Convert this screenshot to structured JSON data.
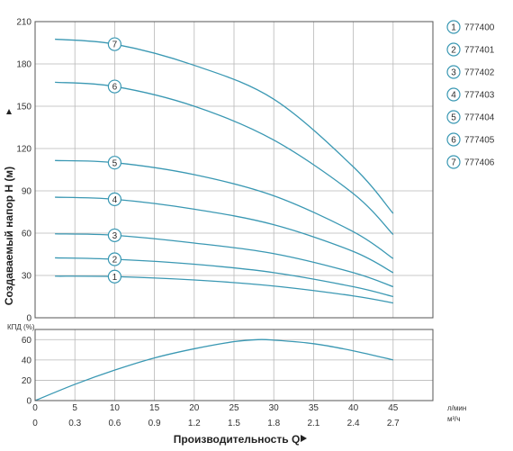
{
  "colors": {
    "curve": "#3a98b3",
    "grid": "#b8b8b8",
    "frame": "#555555",
    "marker_fill": "#ffffff",
    "marker_stroke": "#3a98b3",
    "arrow": "#222222"
  },
  "chart_data": [
    {
      "type": "line",
      "panel": "head",
      "ylabel": "Создаваемый напор H (м)",
      "ylim": [
        0,
        210
      ],
      "yticks": [
        "0",
        "30",
        "60",
        "90",
        "120",
        "150",
        "180",
        "210"
      ],
      "xlim": [
        0,
        50
      ],
      "grid": true,
      "series": [
        {
          "name": "1",
          "x": [
            2.5,
            10,
            20,
            30,
            40,
            45
          ],
          "values": [
            29.5,
            29.2,
            26.8,
            22.5,
            15.5,
            10.5
          ]
        },
        {
          "name": "2",
          "x": [
            2.5,
            10,
            20,
            30,
            40,
            45
          ],
          "values": [
            42.5,
            41.5,
            38,
            32,
            22,
            15
          ]
        },
        {
          "name": "3",
          "x": [
            2.5,
            10,
            20,
            30,
            40,
            45
          ],
          "values": [
            59.5,
            58.5,
            53,
            45.5,
            32,
            22
          ]
        },
        {
          "name": "4",
          "x": [
            2.5,
            10,
            20,
            30,
            40,
            45
          ],
          "values": [
            85.5,
            84,
            77,
            66,
            47,
            32
          ]
        },
        {
          "name": "5",
          "x": [
            2.5,
            10,
            20,
            30,
            40,
            45
          ],
          "values": [
            111.5,
            110,
            101.5,
            86.5,
            61,
            42
          ]
        },
        {
          "name": "6",
          "x": [
            2.5,
            10,
            20,
            30,
            40,
            45
          ],
          "values": [
            167,
            164,
            150,
            126,
            88,
            59
          ]
        },
        {
          "name": "7",
          "x": [
            2.5,
            10,
            20,
            30,
            40,
            45
          ],
          "values": [
            197.5,
            194,
            179,
            155,
            107,
            74
          ]
        }
      ],
      "markers": [
        {
          "label": "1",
          "x": 10,
          "y": 29.2
        },
        {
          "label": "2",
          "x": 10,
          "y": 41.5
        },
        {
          "label": "3",
          "x": 10,
          "y": 58.5
        },
        {
          "label": "4",
          "x": 10,
          "y": 84
        },
        {
          "label": "5",
          "x": 10,
          "y": 110
        },
        {
          "label": "6",
          "x": 10,
          "y": 164
        },
        {
          "label": "7",
          "x": 10,
          "y": 194
        }
      ]
    },
    {
      "type": "line",
      "panel": "efficiency",
      "ylabel": "КПД (%)",
      "ylim": [
        0,
        70
      ],
      "yticks": [
        "0",
        "20",
        "40",
        "60"
      ],
      "xlim": [
        0,
        50
      ],
      "grid": true,
      "series": [
        {
          "name": "КПД",
          "x": [
            0,
            5,
            10,
            15,
            20,
            25,
            28,
            30,
            35,
            40,
            45
          ],
          "values": [
            0,
            16,
            30,
            42,
            51,
            58,
            60,
            59.5,
            56,
            49,
            40
          ]
        }
      ]
    }
  ],
  "x_axis": {
    "title": "Производительность Q",
    "unit_primary": "л/мин",
    "unit_secondary": "м³/ч",
    "ticks_primary": [
      "0",
      "5",
      "10",
      "15",
      "20",
      "25",
      "30",
      "35",
      "40",
      "45"
    ],
    "ticks_primary_values": [
      0,
      5,
      10,
      15,
      20,
      25,
      30,
      35,
      40,
      45
    ],
    "ticks_secondary": [
      "0",
      "0.3",
      "0.6",
      "0.9",
      "1.2",
      "1.5",
      "1.8",
      "2.1",
      "2.4",
      "2.7"
    ]
  },
  "legend": {
    "placement": "right",
    "items": [
      {
        "num": "1",
        "model": "777400"
      },
      {
        "num": "2",
        "model": "777401"
      },
      {
        "num": "3",
        "model": "777402"
      },
      {
        "num": "4",
        "model": "777403"
      },
      {
        "num": "5",
        "model": "777404"
      },
      {
        "num": "6",
        "model": "777405"
      },
      {
        "num": "7",
        "model": "777406"
      }
    ]
  }
}
